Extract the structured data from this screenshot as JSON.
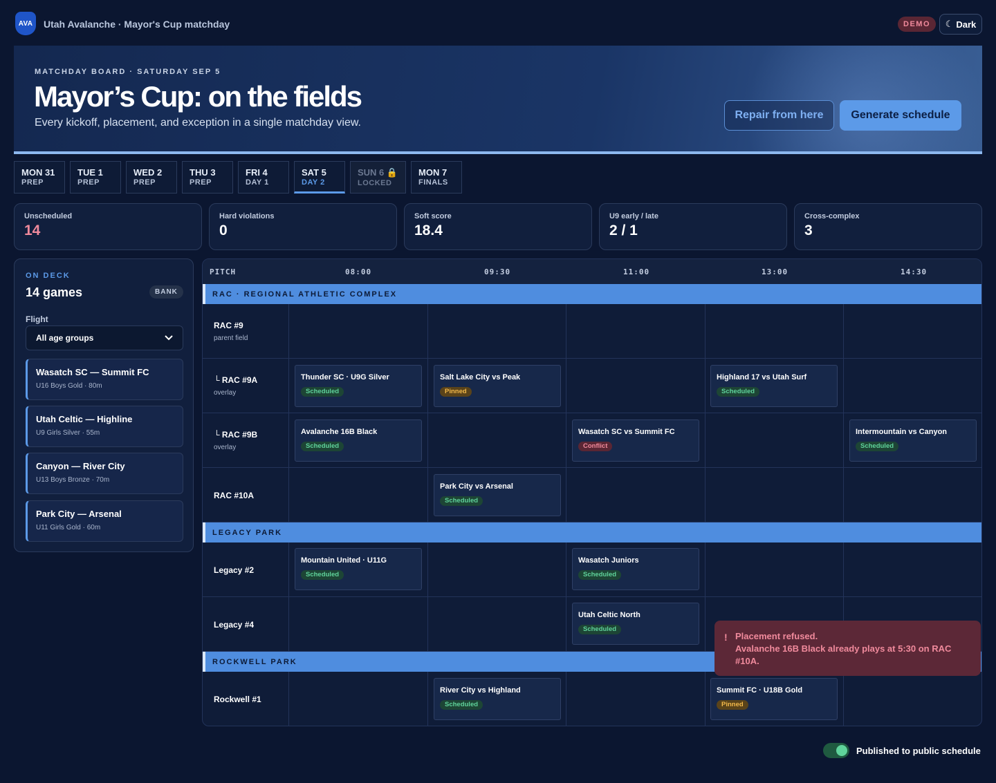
{
  "app": {
    "logo": "AVA",
    "title": "Utah Avalanche · Mayor's Cup matchday",
    "demo_badge": "DEMO",
    "theme_label": "Dark",
    "theme_icon": "moon-icon"
  },
  "hero": {
    "eyebrow": "MATCHDAY BOARD · SATURDAY SEP 5",
    "title": "Mayor’s Cup: on the fields",
    "subtitle": "Every kickoff, placement, and exception in a single matchday view.",
    "repair_label": "Repair from here",
    "generate_label": "Generate schedule"
  },
  "days": [
    {
      "day": "MON 31",
      "sub": "PREP"
    },
    {
      "day": "TUE 1",
      "sub": "PREP"
    },
    {
      "day": "WED 2",
      "sub": "PREP"
    },
    {
      "day": "THU 3",
      "sub": "PREP"
    },
    {
      "day": "FRI 4",
      "sub": "DAY 1"
    },
    {
      "day": "SAT 5",
      "sub": "DAY 2",
      "active": true
    },
    {
      "day": "SUN 6",
      "sub": "LOCKED",
      "locked": true
    },
    {
      "day": "MON 7",
      "sub": "FINALS"
    }
  ],
  "stats": [
    {
      "label": "Unscheduled",
      "value": "14"
    },
    {
      "label": "Hard violations",
      "value": "0"
    },
    {
      "label": "Soft score",
      "value": "18.4"
    },
    {
      "label": "U9 early / late",
      "value": "2 / 1"
    },
    {
      "label": "Cross-complex",
      "value": "3"
    }
  ],
  "deck": {
    "eyebrow": "ON DECK",
    "count": "14 games",
    "bank_badge": "BANK",
    "flight_label": "Flight",
    "flight_value": "All age groups",
    "items": [
      {
        "title": "Wasatch SC — Summit FC",
        "meta": "U16 Boys Gold · 80m"
      },
      {
        "title": "Utah Celtic — Highline",
        "meta": "U9 Girls Silver · 55m"
      },
      {
        "title": "Canyon — River City",
        "meta": "U13 Boys Bronze · 70m"
      },
      {
        "title": "Park City — Arsenal",
        "meta": "U11 Girls Gold · 60m"
      }
    ]
  },
  "grid": {
    "pitch_header": "PITCH",
    "times": [
      "08:00",
      "09:30",
      "11:00",
      "13:00",
      "14:30"
    ],
    "sections": [
      {
        "name": "RAC · REGIONAL ATHLETIC COMPLEX"
      },
      {
        "name": "LEGACY PARK"
      },
      {
        "name": "ROCKWELL PARK"
      }
    ],
    "rows": [
      {
        "name": "RAC #9",
        "sub": "parent field"
      },
      {
        "name": "└ RAC #9A",
        "sub": "overlay"
      },
      {
        "name": "└ RAC #9B",
        "sub": "overlay"
      },
      {
        "name": "RAC #10A",
        "sub": ""
      },
      {
        "name": "Legacy #2",
        "sub": ""
      },
      {
        "name": "Legacy #4",
        "sub": ""
      },
      {
        "name": "Rockwell #1",
        "sub": ""
      }
    ],
    "games": [
      {
        "title": "Thunder SC · U9G Silver",
        "status": "Scheduled"
      },
      {
        "title": "Salt Lake City vs Peak",
        "status": "Pinned"
      },
      {
        "title": "Highland 17 vs Utah Surf",
        "status": "Scheduled"
      },
      {
        "title": "Avalanche 16B Black",
        "status": "Scheduled"
      },
      {
        "title": "Wasatch SC vs Summit FC",
        "status": "Conflict"
      },
      {
        "title": "Intermountain vs Canyon",
        "status": "Scheduled"
      },
      {
        "title": "Park City vs Arsenal",
        "status": "Scheduled"
      },
      {
        "title": "Mountain United · U11G",
        "status": "Scheduled"
      },
      {
        "title": "Wasatch Juniors",
        "status": "Scheduled"
      },
      {
        "title": "Utah Celtic North",
        "status": "Scheduled"
      },
      {
        "title": "River City vs Highland",
        "status": "Scheduled"
      },
      {
        "title": "Summit FC · U18B Gold",
        "status": "Pinned"
      }
    ]
  },
  "toast": {
    "title": "Placement refused.",
    "message": "Avalanche 16B Black already plays at 5:30 on RAC #10A."
  },
  "publish": {
    "label": "Published to public schedule",
    "on": true
  }
}
